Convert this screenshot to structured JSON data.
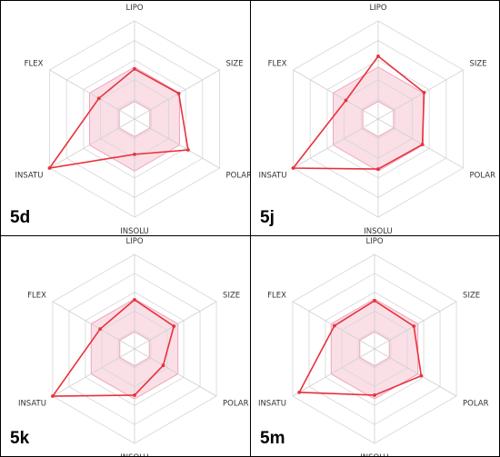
{
  "colors": {
    "line": "#e8323c",
    "range_fill": "#f6c4d4",
    "range_edge": "#ee9fb6",
    "grid": "#d6d6d6",
    "spoke": "#cfcfcf",
    "panel_border": "#000000",
    "text": "#333333"
  },
  "chart_data": [
    {
      "type": "radar",
      "label": "5d",
      "axes": [
        "LIPO",
        "SIZE",
        "POLAR",
        "INSOLU",
        "INSATU",
        "FLEX"
      ],
      "rlim": [
        0,
        1
      ],
      "grid": true,
      "optimal_range": {
        "inner": 0.18,
        "outer": 0.53
      },
      "values": [
        0.51,
        0.52,
        0.63,
        0.36,
        1.0,
        0.42
      ]
    },
    {
      "type": "radar",
      "label": "5j",
      "axes": [
        "LIPO",
        "SIZE",
        "POLAR",
        "INSOLU",
        "INSATU",
        "FLEX"
      ],
      "rlim": [
        0,
        1
      ],
      "grid": true,
      "optimal_range": {
        "inner": 0.18,
        "outer": 0.53
      },
      "values": [
        0.64,
        0.54,
        0.52,
        0.51,
        1.0,
        0.38
      ]
    },
    {
      "type": "radar",
      "label": "5k",
      "axes": [
        "LIPO",
        "SIZE",
        "POLAR",
        "INSOLU",
        "INSATU",
        "FLEX"
      ],
      "rlim": [
        0,
        1
      ],
      "grid": true,
      "optimal_range": {
        "inner": 0.18,
        "outer": 0.53
      },
      "values": [
        0.52,
        0.48,
        0.35,
        0.49,
        1.0,
        0.42
      ]
    },
    {
      "type": "radar",
      "label": "5m",
      "axes": [
        "LIPO",
        "SIZE",
        "POLAR",
        "INSOLU",
        "INSATU",
        "FLEX"
      ],
      "rlim": [
        0,
        1
      ],
      "grid": true,
      "optimal_range": {
        "inner": 0.18,
        "outer": 0.53
      },
      "values": [
        0.51,
        0.48,
        0.57,
        0.49,
        0.92,
        0.49
      ]
    }
  ]
}
